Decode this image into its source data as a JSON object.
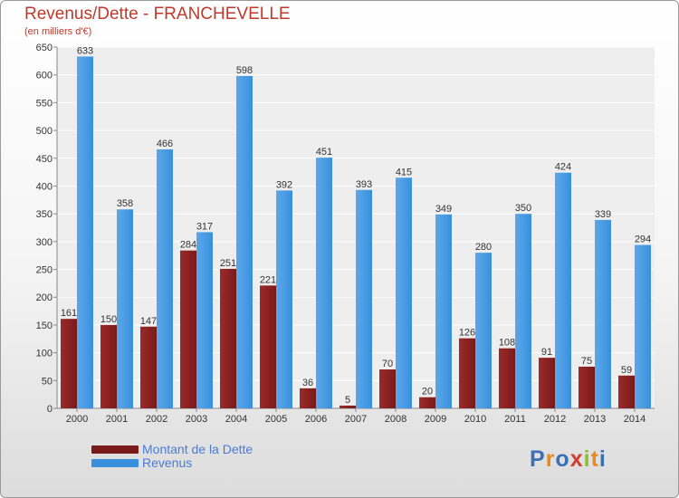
{
  "header": {
    "title": "Revenus/Dette - FRANCHEVELLE",
    "subtitle": "(en milliers d'€)"
  },
  "colors": {
    "dette": "#7a1a1a",
    "revenus": "#3a90dc",
    "title": "#c0392b",
    "legend_text": "#4a7bd8"
  },
  "chart_data": {
    "type": "bar",
    "title": "Revenus/Dette - FRANCHEVELLE",
    "ylabel": "(en milliers d'€)",
    "xlabel": "",
    "categories": [
      "2000",
      "2001",
      "2002",
      "2003",
      "2004",
      "2005",
      "2006",
      "2007",
      "2008",
      "2009",
      "2010",
      "2011",
      "2012",
      "2013",
      "2014"
    ],
    "series": [
      {
        "name": "Montant de la Dette",
        "values": [
          161,
          150,
          147,
          284,
          251,
          221,
          36,
          5,
          70,
          20,
          126,
          108,
          91,
          75,
          59
        ]
      },
      {
        "name": "Revenus",
        "values": [
          633,
          358,
          466,
          317,
          598,
          392,
          451,
          393,
          415,
          349,
          280,
          350,
          424,
          339,
          294
        ]
      }
    ],
    "ylim": [
      0,
      650
    ],
    "yticks": [
      0,
      50,
      100,
      150,
      200,
      250,
      300,
      350,
      400,
      450,
      500,
      550,
      600,
      650
    ],
    "grid": true,
    "legend": "bottom-left"
  },
  "legend": {
    "dette_label": "Montant de la Dette",
    "revenus_label": "Revenus"
  },
  "logo": {
    "letters": [
      "P",
      "r",
      "o",
      "x",
      "i",
      "t",
      "i"
    ],
    "colors": [
      "#3b6fb6",
      "#e98a1c",
      "#3b6fb6",
      "#d63b2f",
      "#8bbf2e",
      "#e98a1c",
      "#3b6fb6"
    ]
  }
}
